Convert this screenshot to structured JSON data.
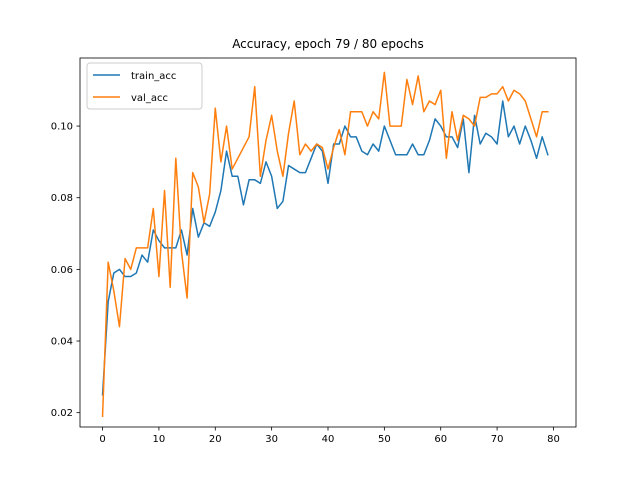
{
  "chart_data": {
    "type": "line",
    "title": "Accuracy, epoch 79 / 80 epochs",
    "xlabel": "",
    "ylabel": "",
    "xlim": [
      -4,
      84
    ],
    "ylim": [
      0.016,
      0.119
    ],
    "xticks": [
      0,
      10,
      20,
      30,
      40,
      50,
      60,
      70,
      80
    ],
    "xtick_labels": [
      "0",
      "10",
      "20",
      "30",
      "40",
      "50",
      "60",
      "70",
      "80"
    ],
    "yticks": [
      0.02,
      0.04,
      0.06,
      0.08,
      0.1
    ],
    "ytick_labels": [
      "0.02",
      "0.04",
      "0.06",
      "0.08",
      "0.10"
    ],
    "grid": false,
    "legend_position": "top-left",
    "x": [
      0,
      1,
      2,
      3,
      4,
      5,
      6,
      7,
      8,
      9,
      10,
      11,
      12,
      13,
      14,
      15,
      16,
      17,
      18,
      19,
      20,
      21,
      22,
      23,
      24,
      25,
      26,
      27,
      28,
      29,
      30,
      31,
      32,
      33,
      34,
      35,
      36,
      37,
      38,
      39,
      40,
      41,
      42,
      43,
      44,
      45,
      46,
      47,
      48,
      49,
      50,
      51,
      52,
      53,
      54,
      55,
      56,
      57,
      58,
      59,
      60,
      61,
      62,
      63,
      64,
      65,
      66,
      67,
      68,
      69,
      70,
      71,
      72,
      73,
      74,
      75,
      76,
      77,
      78,
      79
    ],
    "series": [
      {
        "name": "train_acc",
        "color": "#1f77b4",
        "values": [
          0.025,
          0.051,
          0.059,
          0.06,
          0.058,
          0.058,
          0.059,
          0.064,
          0.062,
          0.071,
          0.068,
          0.066,
          0.066,
          0.066,
          0.071,
          0.064,
          0.077,
          0.069,
          0.073,
          0.072,
          0.076,
          0.082,
          0.093,
          0.086,
          0.086,
          0.078,
          0.085,
          0.085,
          0.084,
          0.09,
          0.086,
          0.077,
          0.079,
          0.089,
          0.088,
          0.087,
          0.087,
          0.091,
          0.095,
          0.093,
          0.084,
          0.095,
          0.095,
          0.1,
          0.097,
          0.097,
          0.093,
          0.092,
          0.095,
          0.093,
          0.1,
          0.096,
          0.092,
          0.092,
          0.092,
          0.095,
          0.092,
          0.092,
          0.096,
          0.102,
          0.1,
          0.097,
          0.097,
          0.094,
          0.102,
          0.087,
          0.103,
          0.095,
          0.098,
          0.097,
          0.095,
          0.107,
          0.097,
          0.1,
          0.095,
          0.1,
          0.096,
          0.091,
          0.097,
          0.092
        ]
      },
      {
        "name": "val_acc",
        "color": "#ff7f0e",
        "values": [
          0.019,
          0.062,
          0.054,
          0.044,
          0.063,
          0.06,
          0.066,
          0.066,
          0.066,
          0.077,
          0.058,
          0.082,
          0.055,
          0.091,
          0.065,
          0.052,
          0.087,
          0.083,
          0.073,
          0.081,
          0.105,
          0.09,
          0.1,
          0.088,
          0.091,
          0.094,
          0.097,
          0.111,
          0.086,
          0.096,
          0.103,
          0.093,
          0.086,
          0.098,
          0.107,
          0.092,
          0.095,
          0.093,
          0.095,
          0.094,
          0.088,
          0.094,
          0.099,
          0.092,
          0.104,
          0.104,
          0.104,
          0.1,
          0.104,
          0.102,
          0.115,
          0.1,
          0.1,
          0.1,
          0.113,
          0.106,
          0.114,
          0.104,
          0.107,
          0.106,
          0.11,
          0.091,
          0.104,
          0.096,
          0.103,
          0.102,
          0.1,
          0.108,
          0.108,
          0.109,
          0.109,
          0.111,
          0.107,
          0.11,
          0.109,
          0.107,
          0.102,
          0.097,
          0.104,
          0.104
        ]
      }
    ]
  }
}
